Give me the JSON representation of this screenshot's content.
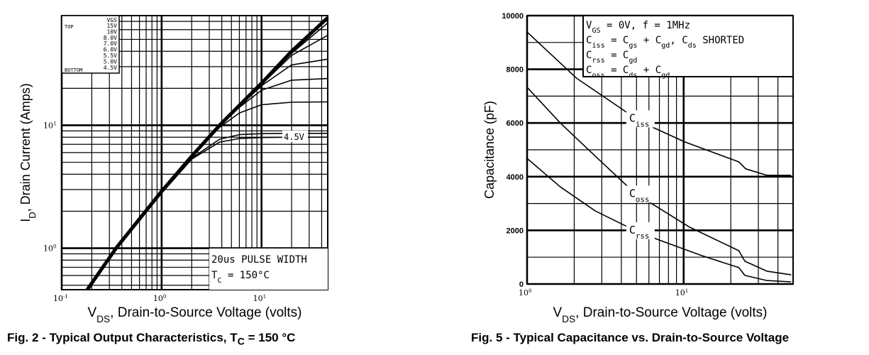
{
  "chart_data": [
    {
      "type": "line",
      "caption": {
        "prefix": "Fig. 2 - Typical Output Characteristics, T",
        "sub": "C",
        "suffix": " = 150 °C"
      },
      "xlabel": {
        "main": "V",
        "sub": "DS",
        "rest": ", Drain-to-Source Voltage (volts)"
      },
      "ylabel": {
        "main": "I",
        "sub": "D",
        "rest": ", Drain Current (Amps)"
      },
      "x_scale": "log",
      "y_scale": "log",
      "xlim": [
        0.1,
        46
      ],
      "ylim": [
        0.46,
        78
      ],
      "x_ticks": [
        {
          "value": 0.1,
          "base": "10",
          "exp": "-1"
        },
        {
          "value": 1,
          "base": "10",
          "exp": "0"
        },
        {
          "value": 10,
          "base": "10",
          "exp": "1"
        }
      ],
      "y_ticks": [
        {
          "value": 1,
          "base": "10",
          "exp": "0"
        },
        {
          "value": 10,
          "base": "10",
          "exp": "1"
        }
      ],
      "grid": true,
      "legend": {
        "position": "top-left",
        "header": "VGS",
        "top_label": "TOP",
        "bottom_label": "BOTTOM",
        "entries": [
          "15V",
          "10V",
          "8.0V",
          "7.0V",
          "6.0V",
          "5.5V",
          "5.0V",
          "4.5V"
        ]
      },
      "annotation": {
        "line1": "20us PULSE WIDTH",
        "line2_main": "T",
        "line2_sub": "C",
        "line2_rest": " = 150°C"
      },
      "curve_label": "4.5V",
      "series": [
        {
          "name": "15V",
          "x": [
            0.18,
            0.35,
            1,
            2,
            3.8,
            6,
            10,
            20,
            46
          ],
          "y": [
            0.46,
            1,
            2.9,
            5.6,
            10,
            14.5,
            22,
            40,
            75
          ]
        },
        {
          "name": "10V",
          "x": [
            0.18,
            0.35,
            1,
            2,
            3.8,
            6,
            10,
            20,
            46
          ],
          "y": [
            0.46,
            1,
            2.9,
            5.6,
            10,
            14.5,
            21.8,
            38.5,
            68
          ]
        },
        {
          "name": "8.0V",
          "x": [
            0.18,
            0.35,
            1,
            2,
            3.8,
            6,
            10,
            20,
            46
          ],
          "y": [
            0.46,
            1,
            2.9,
            5.6,
            10,
            14.4,
            21.5,
            37,
            54
          ]
        },
        {
          "name": "7.0V",
          "x": [
            0.18,
            0.35,
            1,
            2,
            3.8,
            6,
            10,
            20,
            46
          ],
          "y": [
            0.46,
            1,
            2.9,
            5.6,
            10,
            14.2,
            21,
            31,
            34.5
          ]
        },
        {
          "name": "6.0V",
          "x": [
            0.18,
            0.35,
            1,
            2,
            3.8,
            6,
            10,
            20,
            46
          ],
          "y": [
            0.46,
            1,
            2.9,
            5.6,
            9.9,
            14,
            19.3,
            23.3,
            24
          ]
        },
        {
          "name": "5.5V",
          "x": [
            0.18,
            0.35,
            1,
            2,
            3.8,
            6,
            10,
            20,
            46
          ],
          "y": [
            0.46,
            1,
            2.9,
            5.5,
            9.6,
            12.6,
            14.7,
            15.4,
            15.5
          ]
        },
        {
          "name": "5.0V",
          "x": [
            0.18,
            0.35,
            1,
            2,
            3.8,
            6,
            10,
            20,
            46
          ],
          "y": [
            0.46,
            1,
            2.85,
            5.4,
            7.7,
            8.4,
            8.55,
            8.6,
            8.6
          ]
        },
        {
          "name": "4.5V",
          "x": [
            0.18,
            0.35,
            1,
            2,
            3.8,
            6,
            10,
            20,
            46
          ],
          "y": [
            0.46,
            1,
            2.8,
            5.3,
            7.3,
            7.8,
            7.95,
            8,
            8
          ]
        }
      ]
    },
    {
      "type": "line",
      "caption": {
        "prefix": "Fig. 5 - Typical Capacitance vs. Drain-to-Source Voltage",
        "sub": "",
        "suffix": ""
      },
      "xlabel": {
        "main": "V",
        "sub": "DS",
        "rest": ", Drain-to-Source Voltage (volts)"
      },
      "ylabel": {
        "main": "Capacitance (pF)",
        "sub": "",
        "rest": ""
      },
      "x_scale": "log",
      "y_scale": "linear",
      "xlim": [
        1,
        50
      ],
      "ylim": [
        0,
        10000
      ],
      "x_ticks": [
        {
          "value": 1,
          "base": "10",
          "exp": "0"
        },
        {
          "value": 10,
          "base": "10",
          "exp": "1"
        }
      ],
      "y_ticks": [
        {
          "value": 0,
          "label": "0"
        },
        {
          "value": 2000,
          "label": "2000"
        },
        {
          "value": 4000,
          "label": "4000"
        },
        {
          "value": 6000,
          "label": "6000"
        },
        {
          "value": 8000,
          "label": "8000"
        },
        {
          "value": 10000,
          "label": "10000"
        }
      ],
      "grid": true,
      "conditions": [
        {
          "parts": [
            [
              "V",
              ""
            ],
            [
              "GS",
              "sub"
            ],
            [
              " = 0V,  f = 1MHz",
              ""
            ]
          ]
        },
        {
          "parts": [
            [
              "C",
              ""
            ],
            [
              "iss",
              "sub"
            ],
            [
              " = C",
              ""
            ],
            [
              "gs",
              "sub"
            ],
            [
              " + C",
              ""
            ],
            [
              "gd",
              "sub"
            ],
            [
              ",  C",
              ""
            ],
            [
              "ds",
              "sub"
            ],
            [
              " SHORTED",
              ""
            ]
          ]
        },
        {
          "parts": [
            [
              "C",
              ""
            ],
            [
              "rss",
              "sub"
            ],
            [
              " = C",
              ""
            ],
            [
              "gd",
              "sub"
            ]
          ]
        },
        {
          "parts": [
            [
              "C",
              ""
            ],
            [
              "oss",
              "sub"
            ],
            [
              " = C",
              ""
            ],
            [
              "ds",
              "sub"
            ],
            [
              " + C",
              ""
            ],
            [
              "gd",
              "sub"
            ]
          ]
        }
      ],
      "series": [
        {
          "name": "Ciss",
          "label_main": "C",
          "label_sub": "iss",
          "label_at": 5.3,
          "x": [
            1,
            2.07,
            4.45,
            6.45,
            10.2,
            22.5,
            24.9,
            34,
            48.6
          ],
          "y": [
            9390,
            7670,
            6350,
            5820,
            5290,
            4550,
            4290,
            4050,
            4050
          ]
        },
        {
          "name": "Coss",
          "label_main": "C",
          "label_sub": "oss",
          "label_at": 5.3,
          "x": [
            1,
            1.63,
            2.73,
            4.27,
            6.08,
            10.9,
            22.5,
            24.6,
            34,
            48.6
          ],
          "y": [
            7330,
            6000,
            4760,
            3700,
            3040,
            2120,
            1240,
            850,
            480,
            340
          ]
        },
        {
          "name": "Crss",
          "label_main": "C",
          "label_sub": "rss",
          "label_at": 5.3,
          "x": [
            1,
            1.63,
            2.73,
            4.14,
            6.75,
            13,
            22.5,
            24.6,
            34,
            48.6
          ],
          "y": [
            4680,
            3620,
            2720,
            2200,
            1670,
            1060,
            610,
            320,
            130,
            80
          ]
        }
      ]
    }
  ]
}
